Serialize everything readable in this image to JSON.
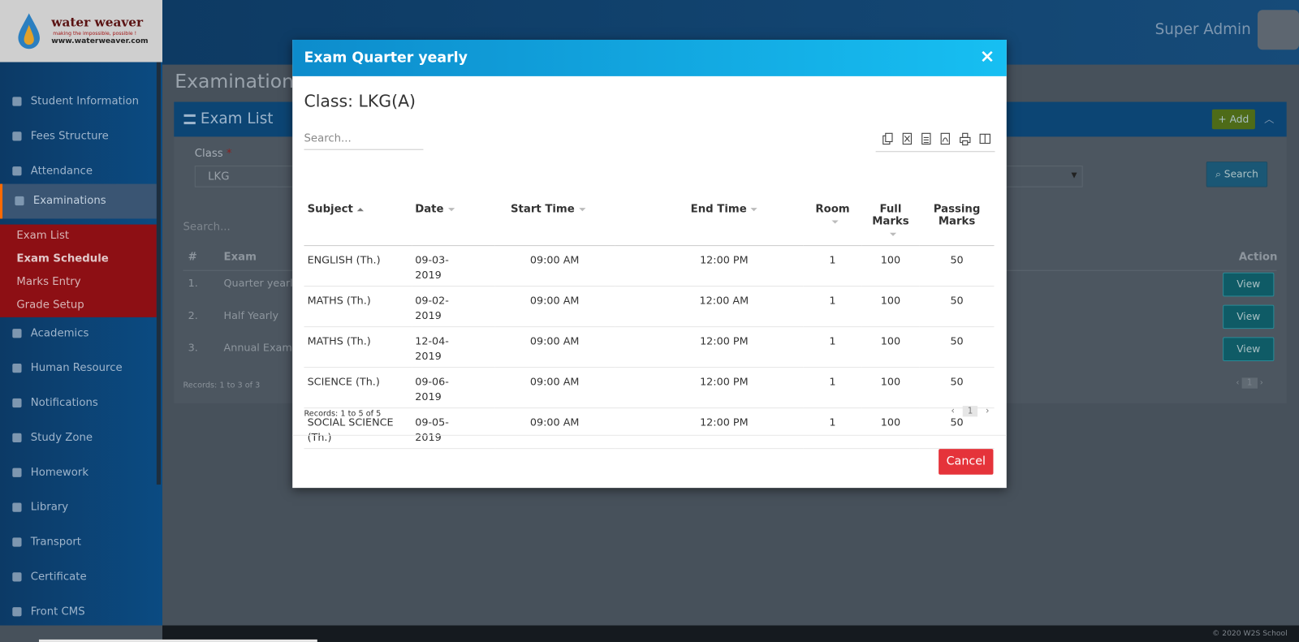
{
  "brand": {
    "name": "water weaver",
    "tagline": "making the impossible, possible !",
    "url": "www.waterweaver.com"
  },
  "header": {
    "user": "Super Admin"
  },
  "sidebar": {
    "items": [
      "Student Information",
      "Fees Structure",
      "Attendance",
      "Examinations",
      "Academics",
      "Human Resource",
      "Notifications",
      "Study Zone",
      "Homework",
      "Library",
      "Transport",
      "Certificate",
      "Front CMS"
    ],
    "active": 3,
    "submenu": [
      "Exam List",
      "Exam Schedule",
      "Marks Entry",
      "Grade Setup"
    ]
  },
  "page": {
    "title": "Examinations",
    "panel_title": "Exam List",
    "add": "Add",
    "class_label": "Class",
    "required": "*",
    "class_value": "LKG",
    "search_button": "Search",
    "search_placeholder": "Search...",
    "columns": [
      "#",
      "Exam",
      "Action"
    ],
    "rows": [
      [
        "1.",
        "Quarter yearly"
      ],
      [
        "2.",
        "Half Yearly"
      ],
      [
        "3.",
        "Annual Exam"
      ]
    ],
    "view": "View",
    "records": "Records: 1 to 3 of 3",
    "page_number": 1
  },
  "modal": {
    "title": "Exam Quarter yearly",
    "close": "×",
    "class_line": "Class: LKG(A)",
    "search_placeholder": "Search...",
    "columns": [
      "Subject",
      "Date",
      "Start Time",
      "End Time",
      "Room",
      "Full Marks",
      "Passing Marks"
    ],
    "rows": [
      [
        "ENGLISH (Th.)",
        "09-03-2019",
        "09:00 AM",
        "12:00 PM",
        1,
        100,
        50
      ],
      [
        "MATHS (Th.)",
        "09-02-2019",
        "09:00 AM",
        "12:00 AM",
        1,
        100,
        50
      ],
      [
        "MATHS (Th.)",
        "12-04-2019",
        "09:00 AM",
        "12:00 PM",
        1,
        100,
        50
      ],
      [
        "SCIENCE (Th.)",
        "09-06-2019",
        "09:00 AM",
        "12:00 PM",
        1,
        100,
        50
      ],
      [
        "SOCIAL SCIENCE (Th.)",
        "09-05-2019",
        "09:00 AM",
        "12:00 PM",
        1,
        100,
        50
      ]
    ],
    "records": "Records: 1 to 5 of 5",
    "page_number": 1,
    "cancel": "Cancel"
  },
  "footer": "© 2020 W2S School"
}
